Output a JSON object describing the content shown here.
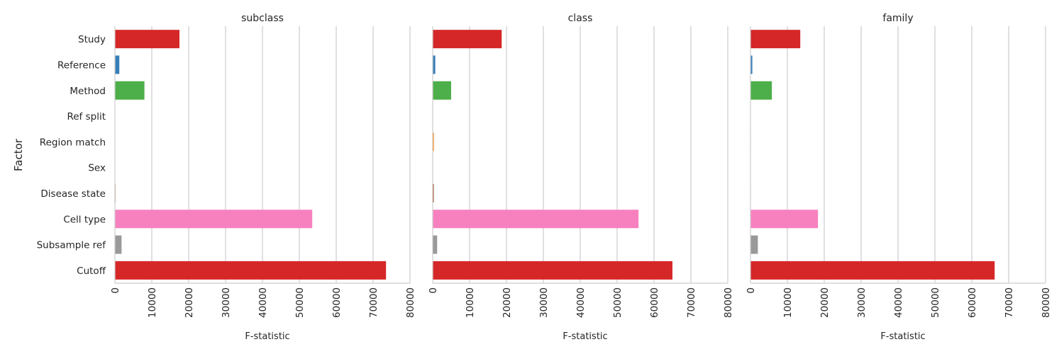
{
  "chart_data": {
    "type": "bar",
    "orientation": "horizontal",
    "ylabel": "Factor",
    "xlabel": "F-statistic",
    "xlim": [
      0,
      80000
    ],
    "xticks": [
      "0",
      "10000",
      "20000",
      "30000",
      "40000",
      "50000",
      "60000",
      "70000",
      "80000"
    ],
    "xtick_values": [
      0,
      10000,
      20000,
      30000,
      40000,
      50000,
      60000,
      70000,
      80000
    ],
    "grid": "vertical",
    "categories": [
      "Study",
      "Reference",
      "Method",
      "Ref split",
      "Region match",
      "Sex",
      "Disease state",
      "Cell type",
      "Subsample ref",
      "Cutoff"
    ],
    "colors": [
      "#d62728",
      "#377eb8",
      "#4daf4a",
      "#984ea3",
      "#ff7f00",
      "#ffff33",
      "#a65628",
      "#f781bf",
      "#999999",
      "#d62728"
    ],
    "panels": [
      {
        "title": "subclass",
        "values": [
          17500,
          1200,
          8000,
          0,
          0,
          0,
          150,
          53500,
          1800,
          73500
        ]
      },
      {
        "title": "class",
        "values": [
          18700,
          700,
          5000,
          0,
          300,
          0,
          300,
          55800,
          1200,
          65000
        ]
      },
      {
        "title": "family",
        "values": [
          13500,
          500,
          5800,
          0,
          100,
          0,
          100,
          18300,
          2000,
          66200
        ]
      }
    ]
  }
}
